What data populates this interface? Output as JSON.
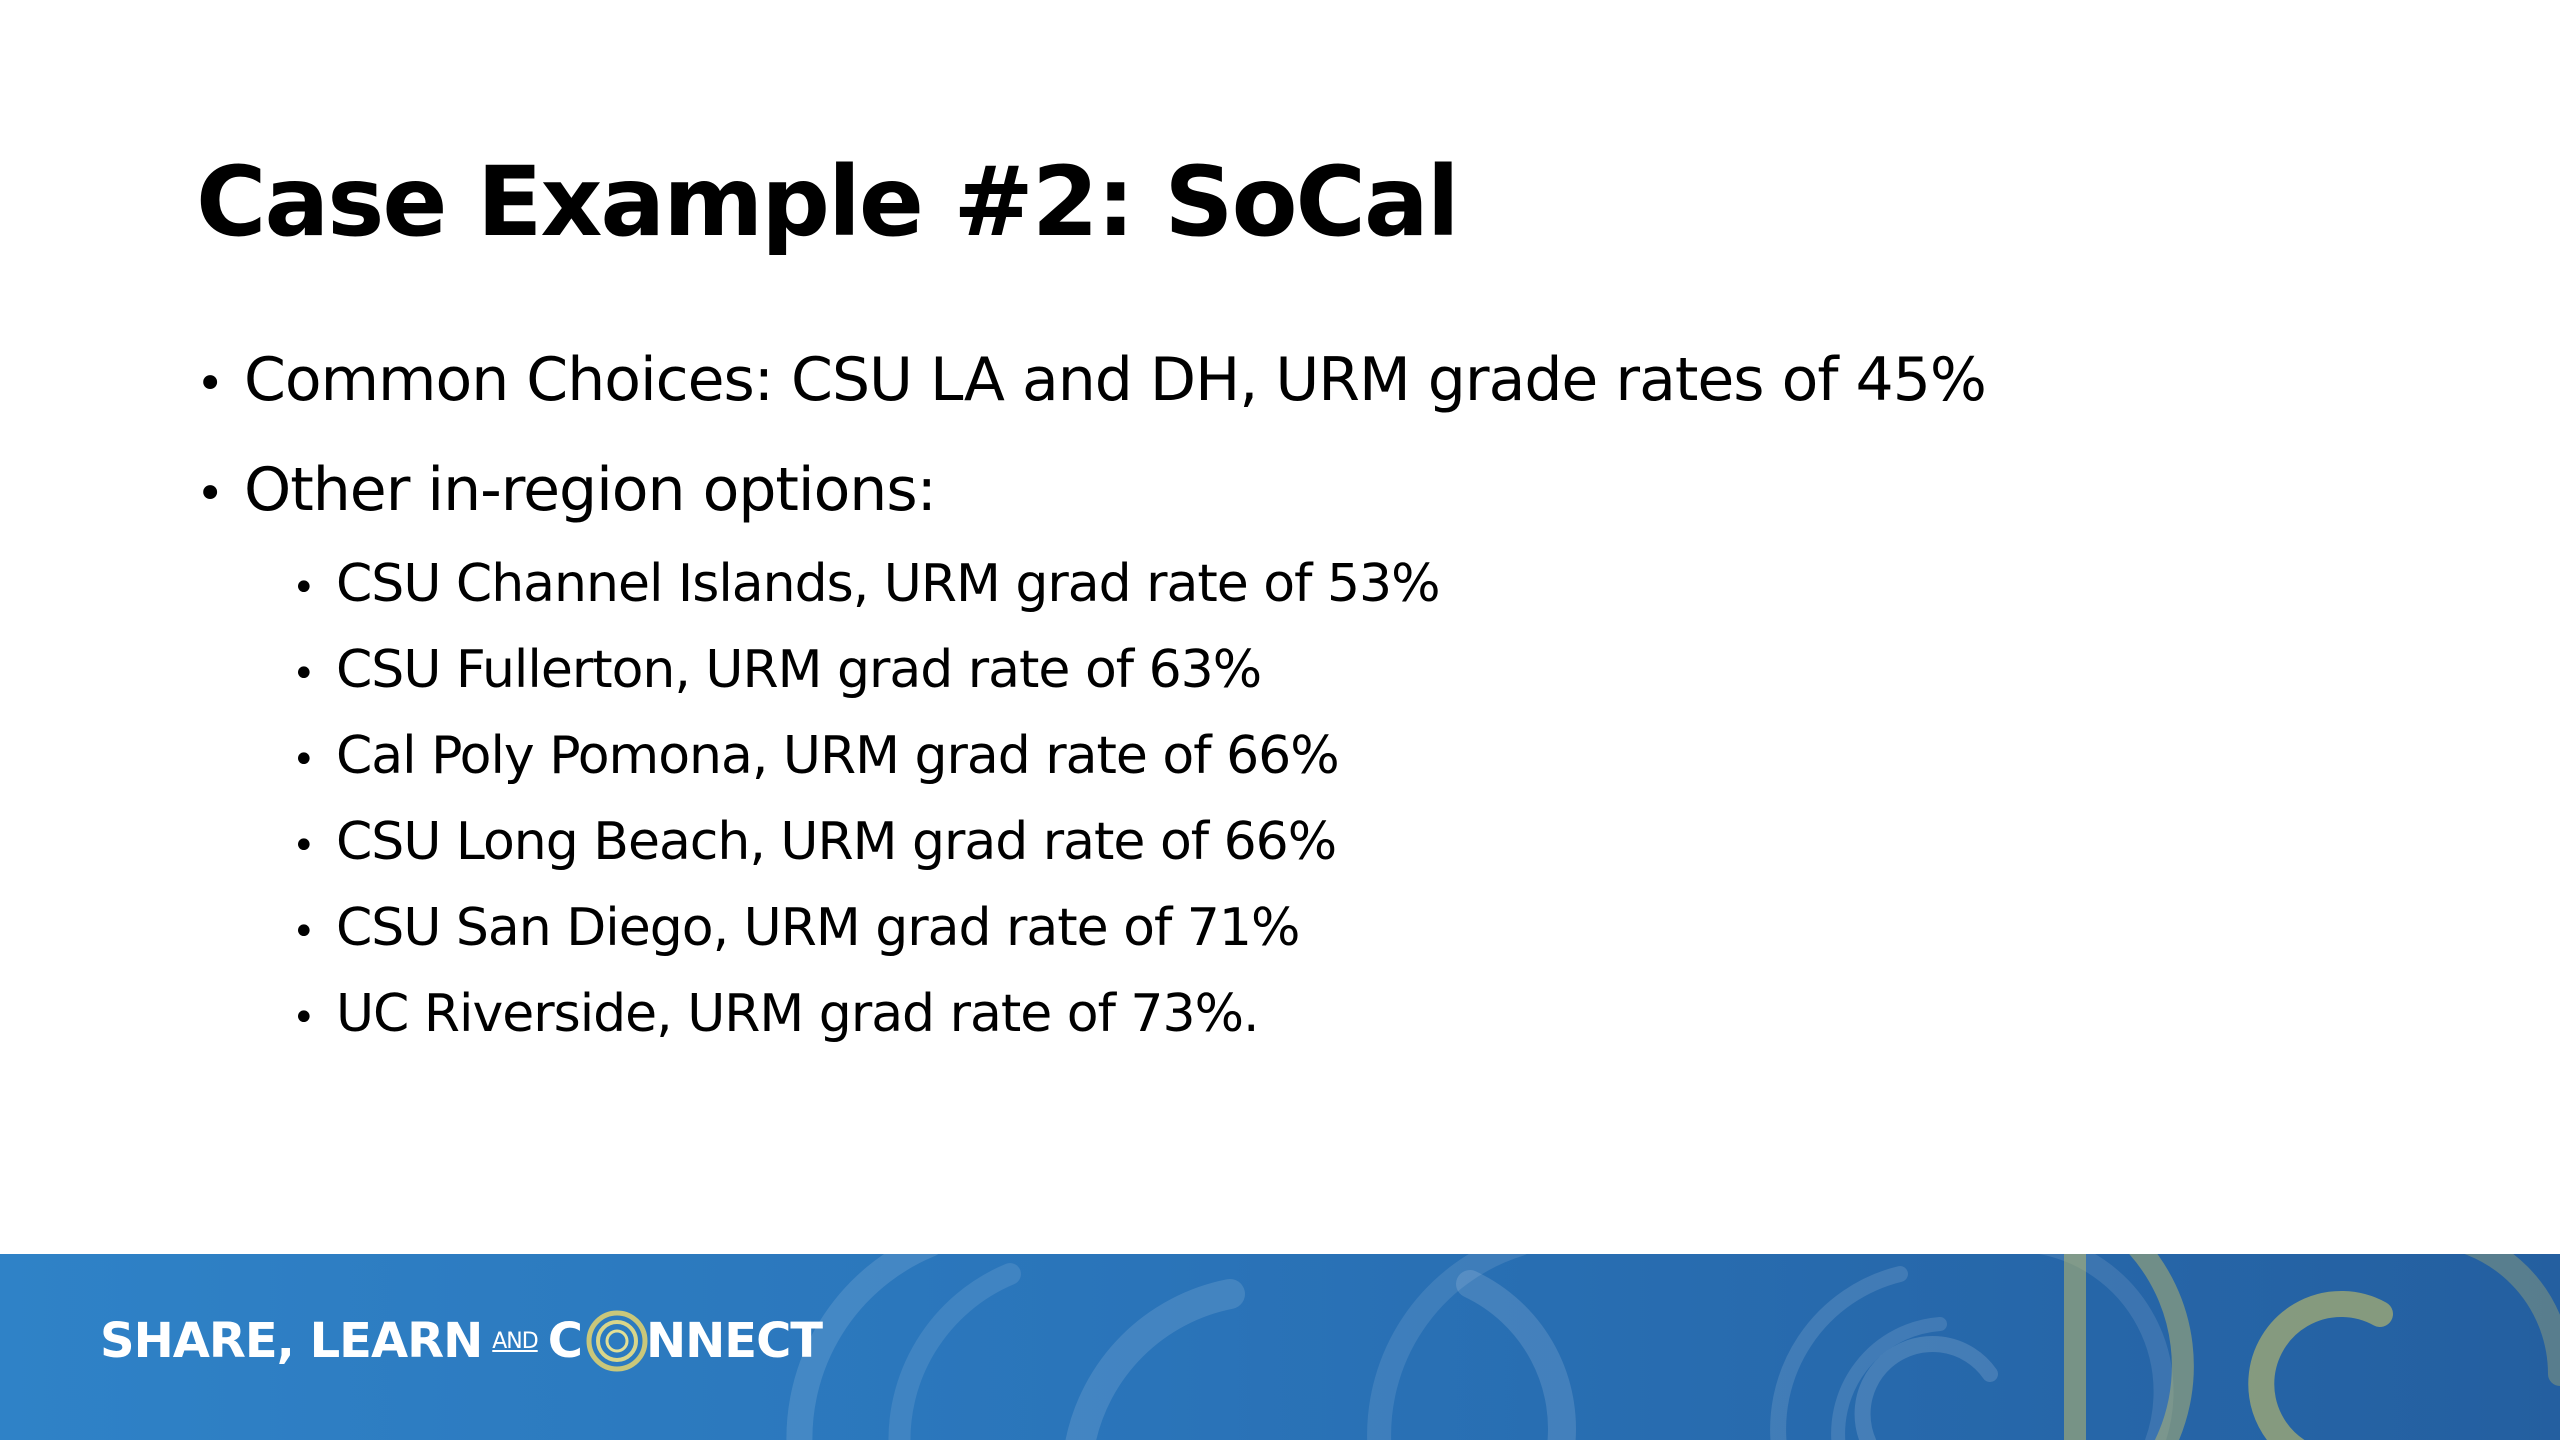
{
  "slide": {
    "title": "Case Example #2: SoCal",
    "bullets": [
      {
        "text": "Common Choices: CSU LA and DH, URM grade rates of 45%"
      },
      {
        "text": "Other in-region options:"
      }
    ],
    "sub_bullets": [
      {
        "text": "CSU Channel Islands, URM grad rate of 53%"
      },
      {
        "text": "CSU Fullerton, URM grad rate of 63%"
      },
      {
        "text": "Cal Poly Pomona, URM grad rate of 66%"
      },
      {
        "text": "CSU Long Beach, URM grad rate of 66%"
      },
      {
        "text": "CSU San Diego, URM grad rate of 71%"
      },
      {
        "text": "UC Riverside, URM grad rate of 73%."
      }
    ]
  },
  "footer": {
    "brand_part1": "SHARE, LEARN",
    "brand_and": "AND",
    "brand_c": "C",
    "brand_ring_icon": "o-ring-logo-icon",
    "brand_part2": "NNECT",
    "colors": {
      "band": "#2a74b9",
      "ring_gold": "#b9b86a"
    }
  }
}
